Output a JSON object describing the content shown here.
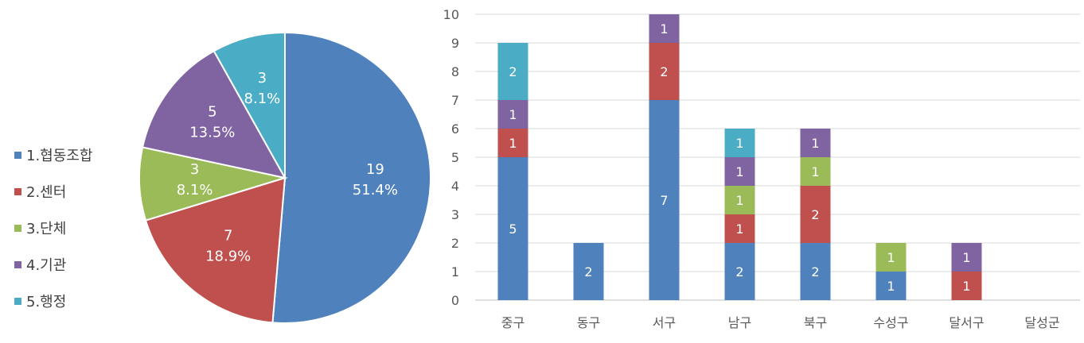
{
  "colors": {
    "series": [
      "#4F81BD",
      "#C0504D",
      "#9BBB59",
      "#8064A2",
      "#4BACC6"
    ],
    "grid": "#D9D9D9",
    "axis_text": "#595959"
  },
  "chart_data": [
    {
      "type": "pie",
      "legend_position": "left",
      "slices": [
        {
          "label": "1.협동조합",
          "value": 19,
          "value_label": "19",
          "percent_label": "51.4%"
        },
        {
          "label": "2.센터",
          "value": 7,
          "value_label": "7",
          "percent_label": "18.9%"
        },
        {
          "label": "3.단체",
          "value": 3,
          "value_label": "3",
          "percent_label": "8.1%"
        },
        {
          "label": "4.기관",
          "value": 5,
          "value_label": "5",
          "percent_label": "13.5%"
        },
        {
          "label": "5.행정",
          "value": 3,
          "value_label": "3",
          "percent_label": "8.1%"
        }
      ]
    },
    {
      "type": "bar",
      "stacked": true,
      "grid": true,
      "categories": [
        "중구",
        "동구",
        "서구",
        "남구",
        "북구",
        "수성구",
        "달서구",
        "달성군"
      ],
      "ylim": [
        0,
        10
      ],
      "yticks": [
        "0",
        "1",
        "2",
        "3",
        "4",
        "5",
        "6",
        "7",
        "8",
        "9",
        "10"
      ],
      "series": [
        {
          "values": [
            5,
            2,
            7,
            2,
            2,
            1,
            0,
            0
          ]
        },
        {
          "values": [
            1,
            0,
            2,
            1,
            2,
            0,
            1,
            0
          ]
        },
        {
          "values": [
            0,
            0,
            0,
            1,
            1,
            1,
            0,
            0
          ]
        },
        {
          "values": [
            1,
            0,
            1,
            1,
            1,
            0,
            1,
            0
          ]
        },
        {
          "values": [
            2,
            0,
            0,
            1,
            0,
            0,
            0,
            0
          ]
        }
      ]
    }
  ]
}
